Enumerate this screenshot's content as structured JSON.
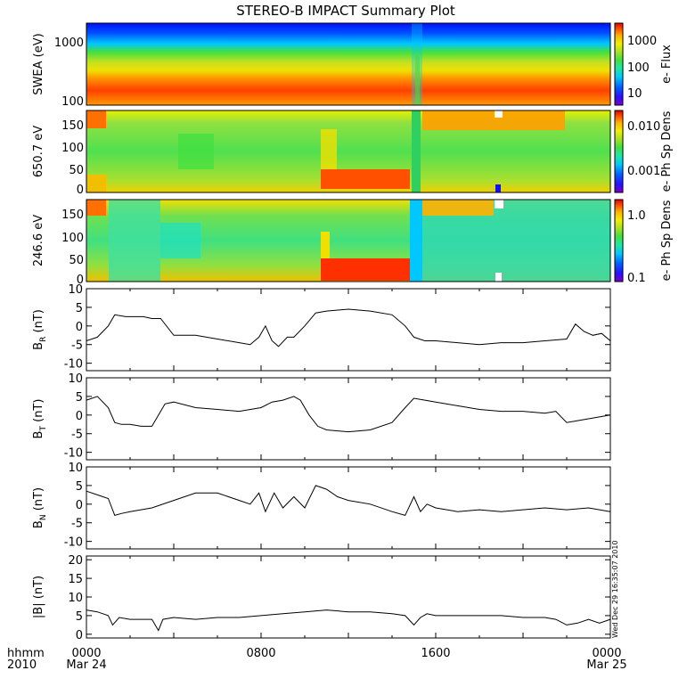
{
  "title": "STEREO-B IMPACT Summary Plot",
  "footer": {
    "left_top": "hhmm",
    "left_bottom": "2010",
    "ticks": [
      {
        "hhmm": "0000",
        "date": "Mar 24"
      },
      {
        "hhmm": "0800",
        "date": ""
      },
      {
        "hhmm": "1600",
        "date": ""
      },
      {
        "hhmm": "0000",
        "date": "Mar 25"
      }
    ],
    "stamp": "Wed Dec 29 16:35:07 2010"
  },
  "colors": {
    "rainbow": [
      "#7a00c8",
      "#2a10ff",
      "#0060ff",
      "#00c8ff",
      "#20e8a0",
      "#40e040",
      "#a8e020",
      "#f0f000",
      "#ffb000",
      "#ff5000",
      "#e00000"
    ]
  },
  "chart_data": [
    {
      "type": "heatmap",
      "ylabel": "SWEA (eV)",
      "scale": "log",
      "yticks": [
        "1000",
        "100"
      ],
      "colorbar": {
        "label": "e- Flux",
        "ticks": [
          "1000",
          "100",
          "10"
        ]
      },
      "x": [
        0,
        4,
        8,
        12,
        14.5,
        15,
        15.5,
        20,
        24
      ],
      "note_values": "energy flux: high (red) below ~300 eV, falling to blue above ~1500 eV; dip near 15:00"
    },
    {
      "type": "heatmap",
      "ylabel": "650.7 eV",
      "yticks": [
        "150",
        "100",
        "50",
        "0"
      ],
      "colorbar": {
        "label": "e- Ph Sp Dens",
        "ticks": [
          "0.010",
          "0.001"
        ]
      },
      "pitch_angle_range": [
        0,
        180
      ]
    },
    {
      "type": "heatmap",
      "ylabel": "246.6 eV",
      "yticks": [
        "150",
        "100",
        "50",
        "0"
      ],
      "colorbar": {
        "label": "e- Ph Sp Dens",
        "ticks": [
          "1.0",
          "0.1"
        ]
      },
      "pitch_angle_range": [
        0,
        180
      ]
    },
    {
      "type": "line",
      "ylabel_main": "B",
      "ylabel_sub": "R",
      "ylabel_unit": " (nT)",
      "ylim": [
        -12,
        10
      ],
      "yticks": [
        "10",
        "5",
        "0",
        "-5",
        "-10"
      ],
      "x": [
        0,
        0.5,
        1.0,
        1.3,
        1.8,
        2.2,
        2.6,
        3.0,
        3.4,
        4.0,
        5.0,
        6.0,
        7.0,
        7.5,
        7.9,
        8.2,
        8.5,
        8.8,
        9.2,
        9.5,
        10.0,
        10.5,
        11.0,
        12.0,
        13.0,
        14.0,
        14.6,
        15.0,
        15.5,
        16.0,
        17.0,
        18.0,
        19.0,
        20.0,
        21.0,
        22.0,
        22.4,
        22.8,
        23.2,
        23.6,
        24.0
      ],
      "values": [
        -4,
        -3,
        0,
        3,
        2.5,
        2.5,
        2.5,
        2,
        2,
        -2.5,
        -2.5,
        -3.5,
        -4.5,
        -5,
        -3,
        0,
        -4,
        -5.5,
        -3,
        -3,
        0,
        3.5,
        4,
        4.5,
        4,
        3,
        0,
        -3,
        -4,
        -4,
        -4.5,
        -5,
        -4.5,
        -4.5,
        -4,
        -3.5,
        0.5,
        -1.5,
        -2.5,
        -2,
        -4
      ]
    },
    {
      "type": "line",
      "ylabel_main": "B",
      "ylabel_sub": "T",
      "ylabel_unit": " (nT)",
      "ylim": [
        -12,
        10
      ],
      "yticks": [
        "10",
        "5",
        "0",
        "-5",
        "-10"
      ],
      "x": [
        0,
        0.5,
        1.0,
        1.3,
        1.6,
        2.0,
        2.5,
        3.0,
        3.4,
        3.6,
        4.0,
        5.0,
        6.0,
        7.0,
        8.0,
        8.5,
        9.0,
        9.5,
        9.8,
        10.2,
        10.6,
        11.0,
        12.0,
        13.0,
        14.0,
        14.6,
        15.0,
        15.5,
        16.0,
        17.0,
        18.0,
        19.0,
        20.0,
        21.0,
        21.5,
        22.0,
        22.5,
        23.0,
        24.0
      ],
      "values": [
        4,
        5,
        2,
        -2,
        -2.5,
        -2.5,
        -3,
        -3,
        1,
        3,
        3.5,
        2,
        1.5,
        1,
        2,
        3.5,
        4,
        5,
        4,
        0,
        -3,
        -4,
        -4.5,
        -4,
        -2,
        2,
        4.5,
        4,
        3.5,
        2.5,
        1.5,
        1,
        1,
        0.5,
        1,
        -2,
        -1.5,
        -1,
        0
      ]
    },
    {
      "type": "line",
      "ylabel_main": "B",
      "ylabel_sub": "N",
      "ylabel_unit": " (nT)",
      "ylim": [
        -12,
        10
      ],
      "yticks": [
        "10",
        "5",
        "0",
        "-5",
        "-10"
      ],
      "x": [
        0,
        0.5,
        1.0,
        1.3,
        1.6,
        2.0,
        3.0,
        4.0,
        5.0,
        6.0,
        7.0,
        7.5,
        7.9,
        8.2,
        8.6,
        9.0,
        9.5,
        10.0,
        10.5,
        11.0,
        11.5,
        12.0,
        13.0,
        14.0,
        14.6,
        15.0,
        15.3,
        15.6,
        16.0,
        17.0,
        18.0,
        19.0,
        20.0,
        21.0,
        22.0,
        23.0,
        24.0
      ],
      "values": [
        3.5,
        2.5,
        1.5,
        -3,
        -2.5,
        -2,
        -1,
        1,
        3,
        3,
        1,
        0,
        3,
        -2,
        3,
        -1,
        2,
        -1,
        5,
        4,
        2,
        1,
        0,
        -2,
        -3,
        2,
        -2,
        0,
        -1,
        -2,
        -1.5,
        -2,
        -1.5,
        -1,
        -1.5,
        -1,
        -2
      ]
    },
    {
      "type": "line",
      "ylabel_main": "|B|",
      "ylabel_sub": "",
      "ylabel_unit": " (nT)",
      "ylim": [
        -1,
        21
      ],
      "yticks": [
        "20",
        "15",
        "10",
        "5",
        "0"
      ],
      "x": [
        0,
        0.5,
        1.0,
        1.2,
        1.5,
        2.0,
        3.0,
        3.3,
        3.5,
        4.0,
        5.0,
        6.0,
        7.0,
        8.0,
        9.0,
        10.0,
        11.0,
        12.0,
        13.0,
        14.0,
        14.6,
        15.0,
        15.3,
        15.6,
        16.0,
        17.0,
        18.0,
        19.0,
        20.0,
        21.0,
        21.5,
        22.0,
        22.5,
        23.0,
        23.5,
        24.0
      ],
      "values": [
        6.5,
        6,
        5,
        2.5,
        4.5,
        4,
        4,
        1,
        4,
        4.5,
        4,
        4.5,
        4.5,
        5,
        5.5,
        6,
        6.5,
        6,
        6,
        5.5,
        5,
        2.5,
        4.5,
        5.5,
        5,
        5,
        5,
        5,
        4.5,
        4.5,
        4,
        2.5,
        3,
        4,
        3,
        4
      ]
    }
  ]
}
